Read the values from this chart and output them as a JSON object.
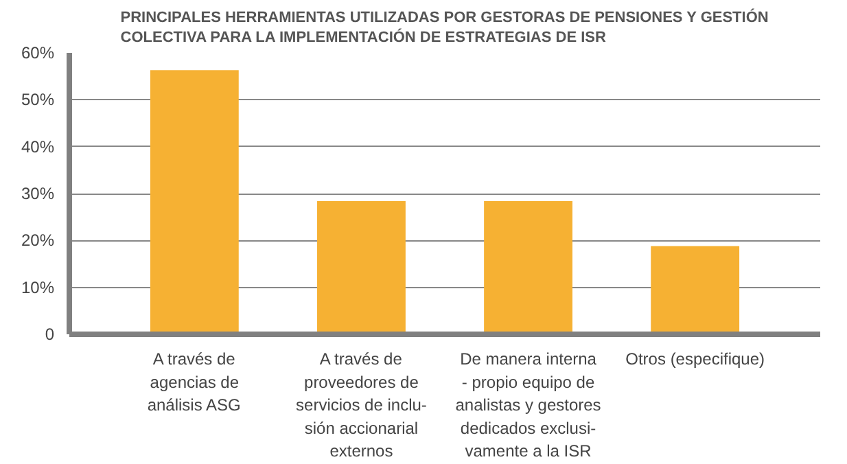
{
  "chart_data": {
    "type": "bar",
    "title": "PRINCIPALES HERRAMIENTAS UTILIZADAS POR GESTORAS DE PENSIONES Y GESTIÓN\nCOLECTIVA PARA LA IMPLEMENTACIÓN DE ESTRATEGIAS DE ISR",
    "categories": [
      "A través de\nagencias de\nanálisis ASG",
      "A través de\nproveedores de\nservicios de inclu-\nsión accionarial\nexternos",
      "De manera interna\n- propio equipo de\nanalistas y gestores\ndedicados exclusi-\nvamente a la ISR",
      "Otros (especifique)"
    ],
    "values": [
      56.3,
      28.4,
      28.4,
      18.8
    ],
    "color": "#f6b133",
    "ylim": [
      0,
      60
    ],
    "yticks": [
      0,
      {
        "value": 10,
        "label": "10%"
      },
      {
        "value": 20,
        "label": "20%"
      },
      {
        "value": 30,
        "label": "30%"
      },
      {
        "value": 40,
        "label": "40%"
      },
      {
        "value": 50,
        "label": "50%"
      },
      {
        "value": 60,
        "label": "60%"
      }
    ],
    "grid": "y"
  }
}
